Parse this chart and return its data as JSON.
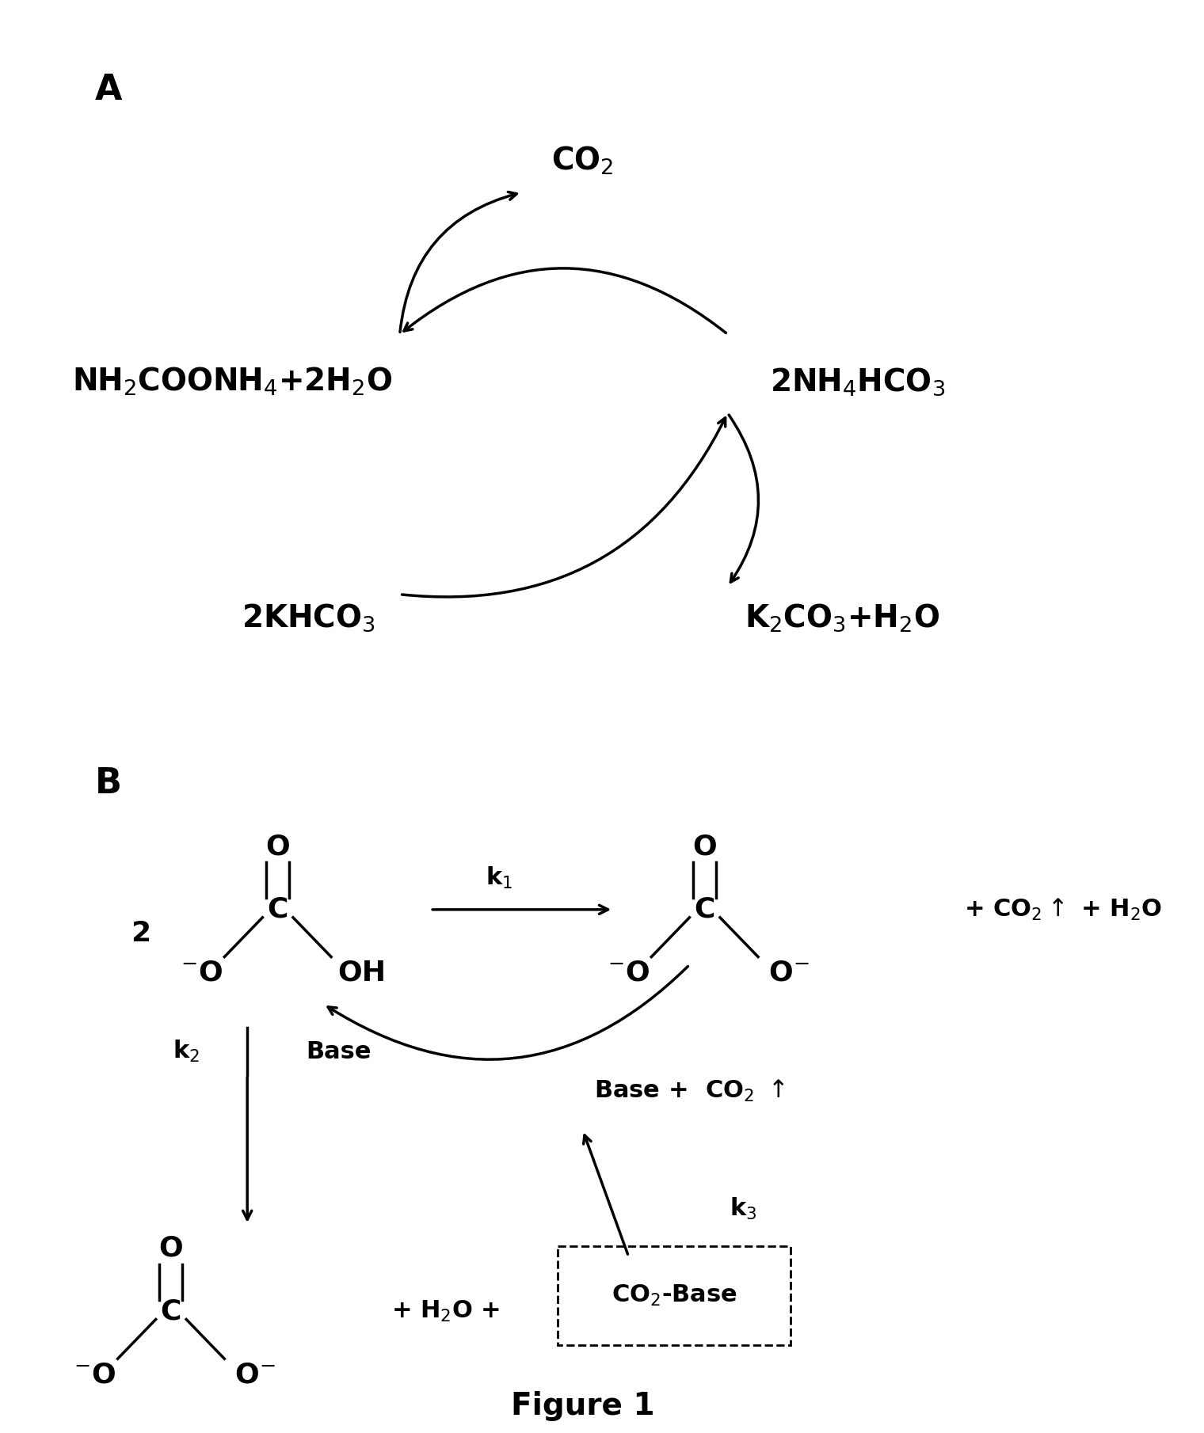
{
  "bg_color": "#ffffff",
  "fig_width": 15.2,
  "fig_height": 18.1,
  "text_color": "#000000",
  "panel_A_label": "A",
  "panel_B_label": "B",
  "figure_title": "Figure 1",
  "fs_panel": 32,
  "fs_chem": 28,
  "fs_mol": 26,
  "fs_small": 22,
  "fs_fig": 28
}
